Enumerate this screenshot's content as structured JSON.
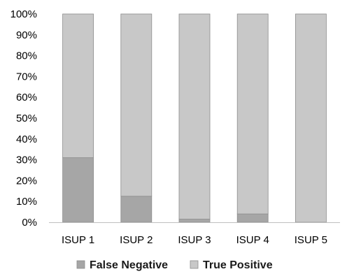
{
  "chart_data": {
    "type": "bar",
    "stacked": true,
    "normalized": true,
    "title": "",
    "xlabel": "",
    "ylabel": "",
    "categories": [
      "ISUP 1",
      "ISUP 2",
      "ISUP 3",
      "ISUP 4",
      "ISUP 5"
    ],
    "series": [
      {
        "name": "False Negative",
        "values": [
          31,
          12.5,
          1.5,
          4,
          0
        ],
        "color": "#a6a6a6"
      },
      {
        "name": "True Positive",
        "values": [
          69,
          87.5,
          98.5,
          96,
          100
        ],
        "color": "#c8c8c8"
      }
    ],
    "ylim": [
      0,
      100
    ],
    "y_ticks": [
      "0%",
      "10%",
      "20%",
      "30%",
      "40%",
      "50%",
      "60%",
      "70%",
      "80%",
      "90%",
      "100%"
    ],
    "grid": false,
    "legend": {
      "position": "bottom",
      "items": [
        {
          "label": "False Negative",
          "color": "#a6a6a6"
        },
        {
          "label": "True Positive",
          "color": "#c8c8c8"
        }
      ]
    }
  }
}
